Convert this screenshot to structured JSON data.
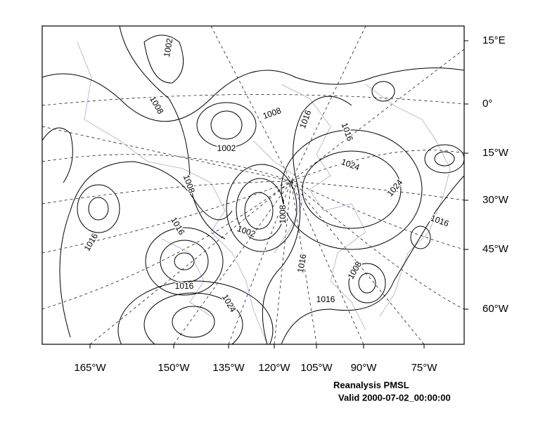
{
  "map": {
    "title": "Reanalysis PMSL",
    "valid": "Valid 2000-07-02_00:00:00",
    "right_labels": [
      "15°E",
      "0°",
      "15°W",
      "30°W",
      "45°W",
      "60°W"
    ],
    "bottom_labels": [
      "165°W",
      "150°W",
      "135°W",
      "120°W",
      "105°W",
      "90°W",
      "75°W"
    ],
    "contour_labels": [
      "1002",
      "1008",
      "1008",
      "1016",
      "1016",
      "1002",
      "1024",
      "1008",
      "1024",
      "1016",
      "1008",
      "1016",
      "1002",
      "1016",
      "1016",
      "1008",
      "1016",
      "1024",
      "1016"
    ]
  }
}
